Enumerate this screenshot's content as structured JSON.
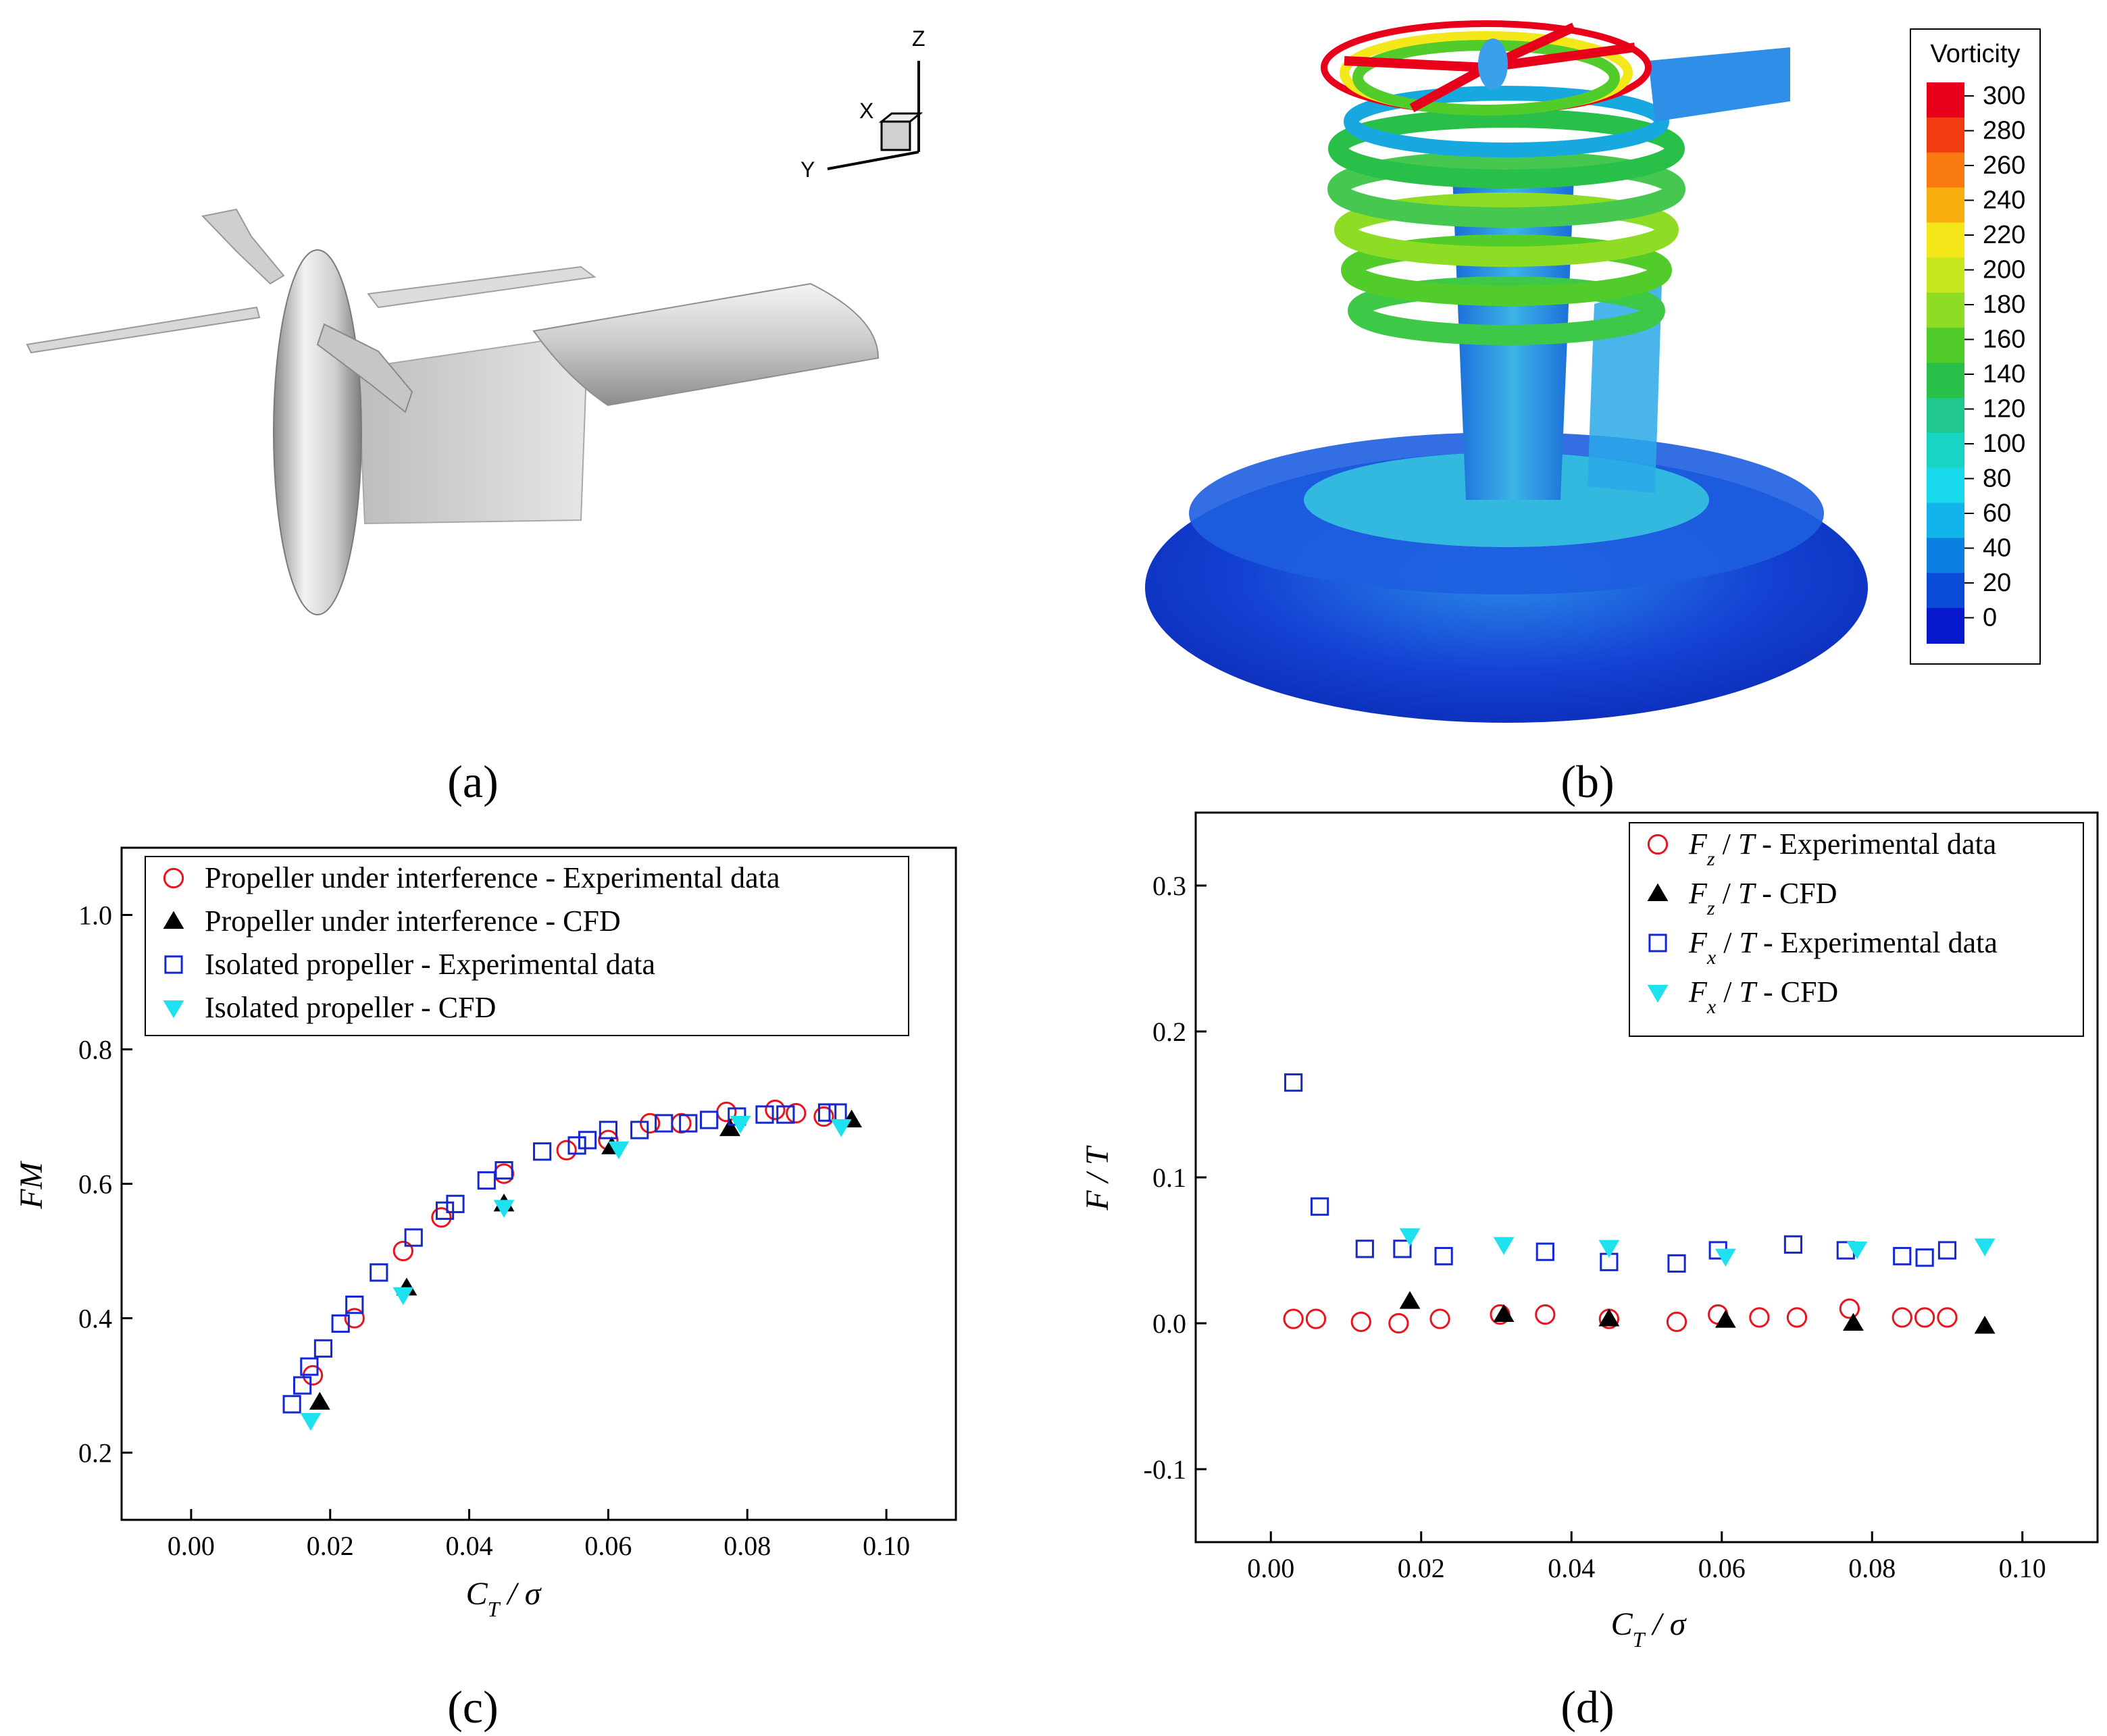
{
  "panels": {
    "a": {
      "label": "(a)"
    },
    "b": {
      "label": "(b)"
    },
    "c": {
      "label": "(c)"
    },
    "d": {
      "label": "(d)"
    }
  },
  "triad": {
    "z": "Z",
    "x": "X",
    "y": "Y"
  },
  "colorbar": {
    "title": "Vorticity",
    "ticks": [
      "300",
      "280",
      "260",
      "240",
      "220",
      "200",
      "180",
      "160",
      "140",
      "120",
      "100",
      "80",
      "60",
      "40",
      "20",
      "0"
    ],
    "colors": [
      "#e8001a",
      "#f03c10",
      "#f87a10",
      "#f9ae10",
      "#f4e81a",
      "#c8e61e",
      "#8edc24",
      "#52cc2a",
      "#28c048",
      "#20c890",
      "#18d4c4",
      "#18d8ec",
      "#12b4ec",
      "#0c80e0",
      "#0a4cd8",
      "#0818cc"
    ]
  },
  "chart_data": [
    {
      "id": "c",
      "type": "scatter",
      "xlabel": "C_T / σ",
      "ylabel": "FM",
      "xlim": [
        -0.01,
        0.11
      ],
      "ylim": [
        0.1,
        1.1
      ],
      "xticks": [
        "0.00",
        "0.02",
        "0.04",
        "0.06",
        "0.08",
        "0.10"
      ],
      "yticks": [
        "0.2",
        "0.4",
        "0.6",
        "0.8",
        "1.0"
      ],
      "legend_position": "top",
      "series": [
        {
          "name": "Propeller under interference - Experimental data",
          "marker": "circle",
          "color": "#e8141e",
          "points": [
            [
              0.0175,
              0.315
            ],
            [
              0.0235,
              0.4
            ],
            [
              0.0305,
              0.5
            ],
            [
              0.036,
              0.55
            ],
            [
              0.045,
              0.615
            ],
            [
              0.054,
              0.65
            ],
            [
              0.06,
              0.665
            ],
            [
              0.066,
              0.69
            ],
            [
              0.0705,
              0.69
            ],
            [
              0.077,
              0.707
            ],
            [
              0.084,
              0.71
            ],
            [
              0.087,
              0.705
            ],
            [
              0.091,
              0.7
            ]
          ]
        },
        {
          "name": "Propeller under interference - CFD",
          "marker": "triangle-up",
          "color": "#000000",
          "points": [
            [
              0.0185,
              0.275
            ],
            [
              0.031,
              0.445
            ],
            [
              0.045,
              0.57
            ],
            [
              0.0605,
              0.655
            ],
            [
              0.0775,
              0.682
            ],
            [
              0.095,
              0.695
            ]
          ]
        },
        {
          "name": "Isolated propeller  - Experimental data",
          "marker": "square",
          "color": "#1428d2",
          "points": [
            [
              0.0145,
              0.272
            ],
            [
              0.016,
              0.3
            ],
            [
              0.017,
              0.328
            ],
            [
              0.019,
              0.355
            ],
            [
              0.0215,
              0.392
            ],
            [
              0.0235,
              0.42
            ],
            [
              0.027,
              0.468
            ],
            [
              0.032,
              0.52
            ],
            [
              0.0365,
              0.56
            ],
            [
              0.038,
              0.57
            ],
            [
              0.0425,
              0.605
            ],
            [
              0.045,
              0.62
            ],
            [
              0.0505,
              0.648
            ],
            [
              0.0555,
              0.657
            ],
            [
              0.057,
              0.665
            ],
            [
              0.06,
              0.68
            ],
            [
              0.0645,
              0.68
            ],
            [
              0.068,
              0.69
            ],
            [
              0.0715,
              0.69
            ],
            [
              0.0745,
              0.695
            ],
            [
              0.0785,
              0.7
            ],
            [
              0.0825,
              0.703
            ],
            [
              0.0855,
              0.703
            ],
            [
              0.0915,
              0.706
            ],
            [
              0.093,
              0.706
            ]
          ]
        },
        {
          "name": "Isolated propeller - CFD",
          "marker": "triangle-down",
          "color": "#1ee1f0",
          "points": [
            [
              0.0172,
              0.248
            ],
            [
              0.0305,
              0.435
            ],
            [
              0.045,
              0.565
            ],
            [
              0.0615,
              0.652
            ],
            [
              0.079,
              0.69
            ],
            [
              0.0935,
              0.685
            ]
          ]
        }
      ]
    },
    {
      "id": "d",
      "type": "scatter",
      "xlabel": "C_T / σ",
      "ylabel": "F / T",
      "xlim": [
        -0.01,
        0.11
      ],
      "ylim": [
        -0.15,
        0.35
      ],
      "xticks": [
        "0.00",
        "0.02",
        "0.04",
        "0.06",
        "0.08",
        "0.10"
      ],
      "yticks": [
        "-0.1",
        "0.0",
        "0.1",
        "0.2",
        "0.3"
      ],
      "legend_position": "top-right",
      "series": [
        {
          "name": "F_z / T - Experimental data",
          "marker": "circle",
          "color": "#e8141e",
          "points": [
            [
              0.003,
              0.003
            ],
            [
              0.006,
              0.003
            ],
            [
              0.012,
              0.001
            ],
            [
              0.017,
              0.0
            ],
            [
              0.0225,
              0.003
            ],
            [
              0.0305,
              0.006
            ],
            [
              0.0365,
              0.006
            ],
            [
              0.045,
              0.003
            ],
            [
              0.054,
              0.001
            ],
            [
              0.0595,
              0.006
            ],
            [
              0.065,
              0.004
            ],
            [
              0.07,
              0.004
            ],
            [
              0.077,
              0.01
            ],
            [
              0.084,
              0.004
            ],
            [
              0.087,
              0.004
            ],
            [
              0.09,
              0.004
            ]
          ]
        },
        {
          "name": "F_z / T - CFD",
          "marker": "triangle-up",
          "color": "#000000",
          "points": [
            [
              0.0185,
              0.015
            ],
            [
              0.031,
              0.006
            ],
            [
              0.045,
              0.003
            ],
            [
              0.0605,
              0.002
            ],
            [
              0.0775,
              0.0
            ],
            [
              0.095,
              -0.002
            ]
          ]
        },
        {
          "name": "F_x / T - Experimental data",
          "marker": "square",
          "color": "#1428d2",
          "points": [
            [
              0.003,
              0.165
            ],
            [
              0.0065,
              0.08
            ],
            [
              0.0125,
              0.051
            ],
            [
              0.0175,
              0.051
            ],
            [
              0.023,
              0.046
            ],
            [
              0.0365,
              0.049
            ],
            [
              0.045,
              0.042
            ],
            [
              0.054,
              0.041
            ],
            [
              0.0595,
              0.05
            ],
            [
              0.0695,
              0.054
            ],
            [
              0.0765,
              0.05
            ],
            [
              0.084,
              0.046
            ],
            [
              0.087,
              0.045
            ],
            [
              0.09,
              0.05
            ]
          ]
        },
        {
          "name": "F_x / T - CFD",
          "marker": "triangle-down",
          "color": "#1ee1f0",
          "points": [
            [
              0.0185,
              0.06
            ],
            [
              0.031,
              0.054
            ],
            [
              0.045,
              0.052
            ],
            [
              0.0605,
              0.046
            ],
            [
              0.078,
              0.051
            ],
            [
              0.095,
              0.053
            ]
          ]
        }
      ]
    }
  ]
}
